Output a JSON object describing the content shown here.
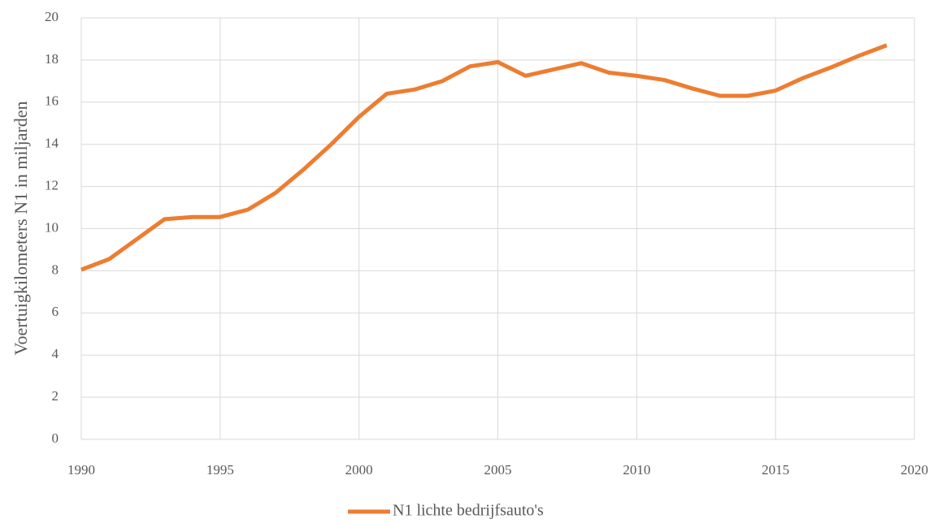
{
  "chart_data": {
    "type": "line",
    "ylabel": "Voertuigkilometers N1 in miljarden",
    "x": [
      1990,
      1991,
      1992,
      1993,
      1994,
      1995,
      1996,
      1997,
      1998,
      1999,
      2000,
      2001,
      2002,
      2003,
      2004,
      2005,
      2006,
      2007,
      2008,
      2009,
      2010,
      2011,
      2012,
      2013,
      2014,
      2015,
      2016,
      2017,
      2018,
      2019
    ],
    "series": [
      {
        "name": "N1 lichte bedrijfsauto's",
        "color": "#ed7d31",
        "values": [
          8.05,
          8.55,
          9.5,
          10.45,
          10.55,
          10.55,
          10.9,
          11.7,
          12.8,
          14.0,
          15.3,
          16.4,
          16.6,
          17.0,
          17.7,
          17.9,
          17.25,
          17.55,
          17.85,
          17.4,
          17.25,
          17.05,
          16.65,
          16.3,
          16.3,
          16.55,
          17.15,
          17.65,
          18.2,
          18.7
        ]
      }
    ],
    "xlim": [
      1990,
      2020
    ],
    "xticks": [
      1990,
      1995,
      2000,
      2005,
      2010,
      2015,
      2020
    ],
    "ylim": [
      0,
      20
    ],
    "yticks": [
      0,
      2,
      4,
      6,
      8,
      10,
      12,
      14,
      16,
      18,
      20
    ],
    "grid": true,
    "legend": "bottom"
  }
}
